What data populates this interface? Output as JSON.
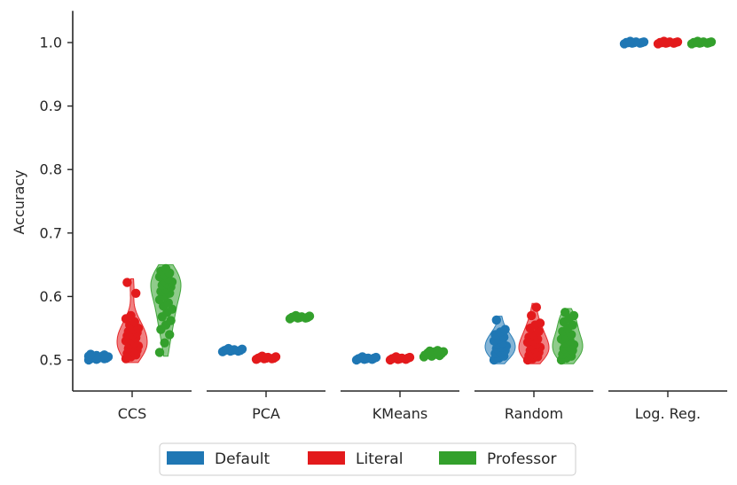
{
  "chart_data": {
    "type": "violin",
    "ylabel": "Accuracy",
    "xlabel": "",
    "ylim": [
      0.45,
      1.05
    ],
    "yticks": [
      0.5,
      0.6,
      0.7,
      0.8,
      0.9,
      1.0
    ],
    "ytick_labels": [
      "0.5",
      "0.6",
      "0.7",
      "0.8",
      "0.9",
      "1.0"
    ],
    "categories": [
      "CCS",
      "PCA",
      "KMeans",
      "Random",
      "Log. Reg."
    ],
    "grid": false,
    "legend_position": "bottom-center",
    "series": [
      {
        "name": "Default",
        "color": "#1f77b4",
        "groups": [
          {
            "points": [
              0.5,
              0.501,
              0.502,
              0.502,
              0.503,
              0.503,
              0.504,
              0.504,
              0.505,
              0.505,
              0.506,
              0.506,
              0.507,
              0.508,
              0.509
            ]
          },
          {
            "points": [
              0.513,
              0.514,
              0.514,
              0.515,
              0.515,
              0.515,
              0.516,
              0.516,
              0.517,
              0.518
            ]
          },
          {
            "points": [
              0.5,
              0.501,
              0.501,
              0.502,
              0.502,
              0.503,
              0.503,
              0.503,
              0.504,
              0.505
            ]
          },
          {
            "points": [
              0.5,
              0.503,
              0.506,
              0.51,
              0.512,
              0.515,
              0.518,
              0.52,
              0.522,
              0.525,
              0.527,
              0.53,
              0.533,
              0.536,
              0.54,
              0.544,
              0.548,
              0.563
            ]
          },
          {
            "points": [
              0.998,
              0.999,
              0.999,
              1.0,
              1.0,
              1.0,
              1.0,
              1.001,
              1.001,
              1.002
            ]
          }
        ]
      },
      {
        "name": "Literal",
        "color": "#e31a1c",
        "groups": [
          {
            "points": [
              0.502,
              0.505,
              0.508,
              0.51,
              0.513,
              0.515,
              0.518,
              0.52,
              0.522,
              0.525,
              0.527,
              0.53,
              0.532,
              0.535,
              0.538,
              0.54,
              0.543,
              0.545,
              0.548,
              0.55,
              0.555,
              0.56,
              0.565,
              0.57,
              0.605,
              0.622
            ]
          },
          {
            "points": [
              0.501,
              0.502,
              0.502,
              0.503,
              0.503,
              0.503,
              0.504,
              0.504,
              0.505,
              0.506
            ]
          },
          {
            "points": [
              0.5,
              0.501,
              0.501,
              0.502,
              0.502,
              0.503,
              0.503,
              0.503,
              0.504,
              0.505
            ]
          },
          {
            "points": [
              0.5,
              0.502,
              0.505,
              0.507,
              0.51,
              0.512,
              0.515,
              0.517,
              0.52,
              0.522,
              0.525,
              0.528,
              0.53,
              0.533,
              0.536,
              0.54,
              0.545,
              0.55,
              0.555,
              0.558,
              0.57,
              0.583
            ]
          },
          {
            "points": [
              0.998,
              0.999,
              0.999,
              1.0,
              1.0,
              1.0,
              1.0,
              1.001,
              1.001,
              1.002
            ]
          }
        ]
      },
      {
        "name": "Professor",
        "color": "#33a02c",
        "groups": [
          {
            "points": [
              0.512,
              0.527,
              0.54,
              0.548,
              0.555,
              0.562,
              0.568,
              0.575,
              0.58,
              0.585,
              0.59,
              0.595,
              0.6,
              0.605,
              0.608,
              0.612,
              0.615,
              0.618,
              0.62,
              0.623,
              0.626,
              0.628,
              0.631,
              0.634,
              0.637,
              0.64,
              0.644
            ]
          },
          {
            "points": [
              0.565,
              0.566,
              0.566,
              0.567,
              0.567,
              0.567,
              0.568,
              0.568,
              0.569,
              0.57
            ]
          },
          {
            "points": [
              0.505,
              0.506,
              0.507,
              0.508,
              0.509,
              0.51,
              0.511,
              0.512,
              0.513,
              0.514,
              0.515
            ]
          },
          {
            "points": [
              0.5,
              0.503,
              0.506,
              0.509,
              0.512,
              0.515,
              0.518,
              0.521,
              0.524,
              0.527,
              0.53,
              0.533,
              0.536,
              0.54,
              0.545,
              0.55,
              0.555,
              0.56,
              0.565,
              0.57,
              0.575
            ]
          },
          {
            "points": [
              0.998,
              0.999,
              0.999,
              1.0,
              1.0,
              1.0,
              1.0,
              1.001,
              1.001,
              1.002
            ]
          }
        ]
      }
    ]
  }
}
